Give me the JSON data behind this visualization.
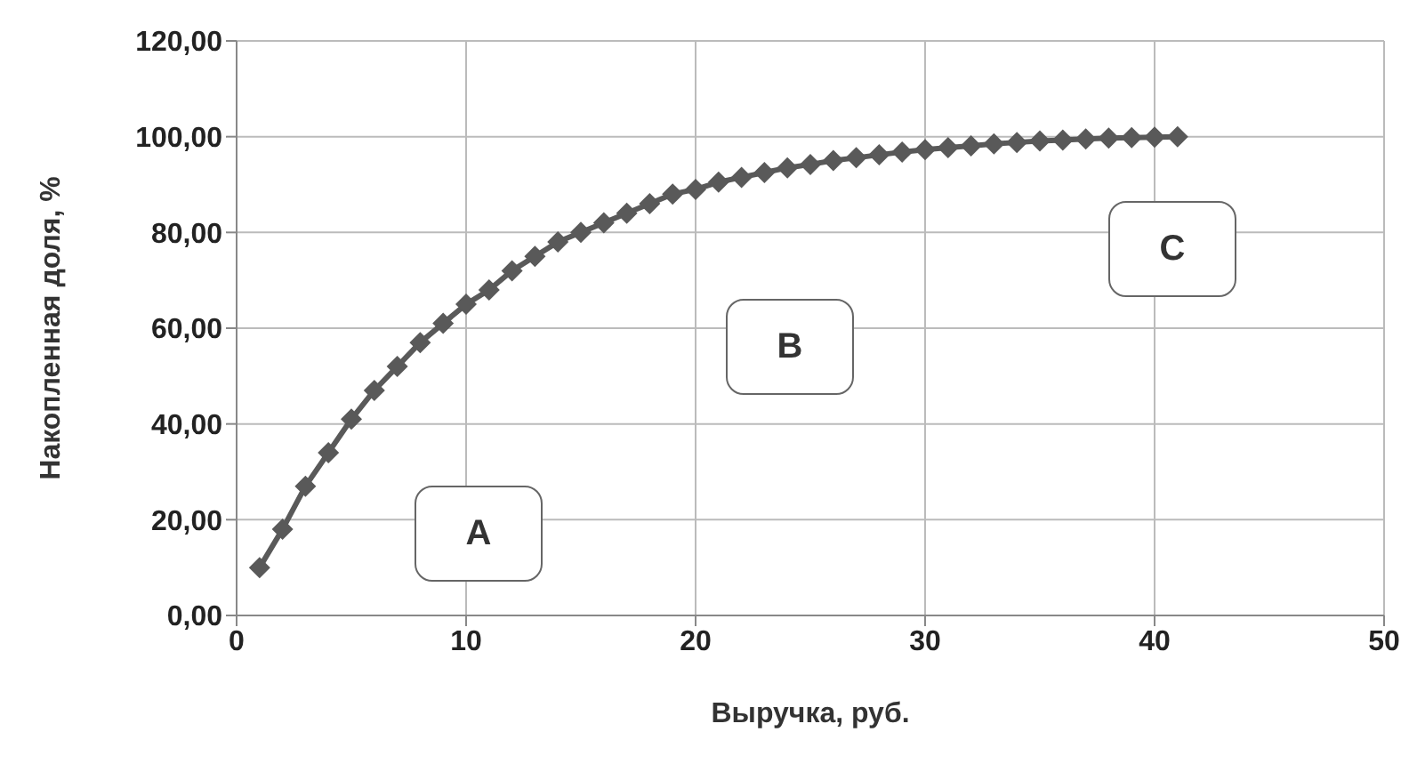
{
  "chart_data": {
    "type": "line",
    "xlabel": "Выручка, руб.",
    "ylabel": "Накопленная доля, %",
    "x": [
      1,
      2,
      3,
      4,
      5,
      6,
      7,
      8,
      9,
      10,
      11,
      12,
      13,
      14,
      15,
      16,
      17,
      18,
      19,
      20,
      21,
      22,
      23,
      24,
      25,
      26,
      27,
      28,
      29,
      30,
      31,
      32,
      33,
      34,
      35,
      36,
      37,
      38,
      39,
      40,
      41
    ],
    "series": [
      {
        "color": "#595959",
        "values": [
          10,
          18,
          27,
          34,
          41,
          47,
          52,
          57,
          61,
          65,
          68,
          72,
          75,
          78,
          80,
          82,
          84,
          86,
          88,
          89,
          90.5,
          91.5,
          92.5,
          93.5,
          94.2,
          95,
          95.6,
          96.2,
          96.8,
          97.3,
          97.7,
          98.1,
          98.5,
          98.8,
          99.1,
          99.3,
          99.5,
          99.7,
          99.8,
          99.9,
          100
        ]
      }
    ],
    "xlim": [
      0,
      50
    ],
    "xticks": [
      0,
      10,
      20,
      30,
      40,
      50
    ],
    "ylim": [
      0,
      120
    ],
    "yticks": [
      {
        "value": 0,
        "label": "0,00"
      },
      {
        "value": 20,
        "label": "20,00"
      },
      {
        "value": 40,
        "label": "40,00"
      },
      {
        "value": 60,
        "label": "60,00"
      },
      {
        "value": 80,
        "label": "80,00"
      },
      {
        "value": 100,
        "label": "100,00"
      },
      {
        "value": 120,
        "label": "120,00"
      }
    ],
    "grid": true,
    "marker": "diamond",
    "line_style": "solid",
    "annotations": [
      "A",
      "B",
      "C"
    ]
  }
}
